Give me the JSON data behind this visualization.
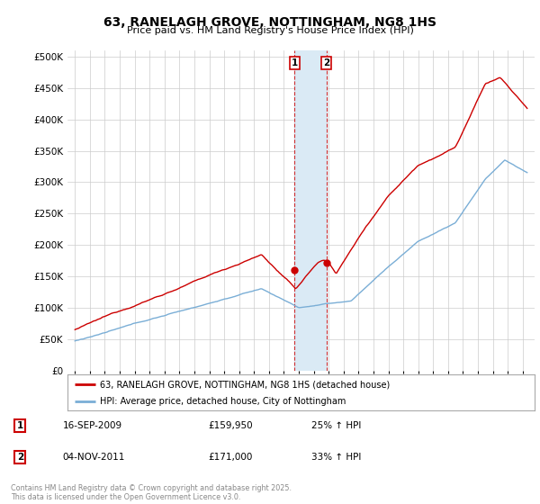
{
  "title_line1": "63, RANELAGH GROVE, NOTTINGHAM, NG8 1HS",
  "title_line2": "Price paid vs. HM Land Registry's House Price Index (HPI)",
  "red_label": "63, RANELAGH GROVE, NOTTINGHAM, NG8 1HS (detached house)",
  "blue_label": "HPI: Average price, detached house, City of Nottingham",
  "red_color": "#cc0000",
  "blue_color": "#7aaed6",
  "shading_color": "#daeaf5",
  "annotation1_label": "1",
  "annotation1_date": "16-SEP-2009",
  "annotation1_price": "£159,950",
  "annotation1_hpi": "25% ↑ HPI",
  "annotation1_year": 2009.71,
  "annotation1_value": 159950,
  "annotation2_label": "2",
  "annotation2_date": "04-NOV-2011",
  "annotation2_price": "£171,000",
  "annotation2_hpi": "33% ↑ HPI",
  "annotation2_year": 2011.84,
  "annotation2_value": 171000,
  "copyright_text": "Contains HM Land Registry data © Crown copyright and database right 2025.\nThis data is licensed under the Open Government Licence v3.0.",
  "background_color": "#ffffff",
  "grid_color": "#cccccc",
  "yticks": [
    0,
    50000,
    100000,
    150000,
    200000,
    250000,
    300000,
    350000,
    400000,
    450000,
    500000
  ],
  "ymax": 510000,
  "xmin": 1994.5,
  "xmax": 2025.8
}
